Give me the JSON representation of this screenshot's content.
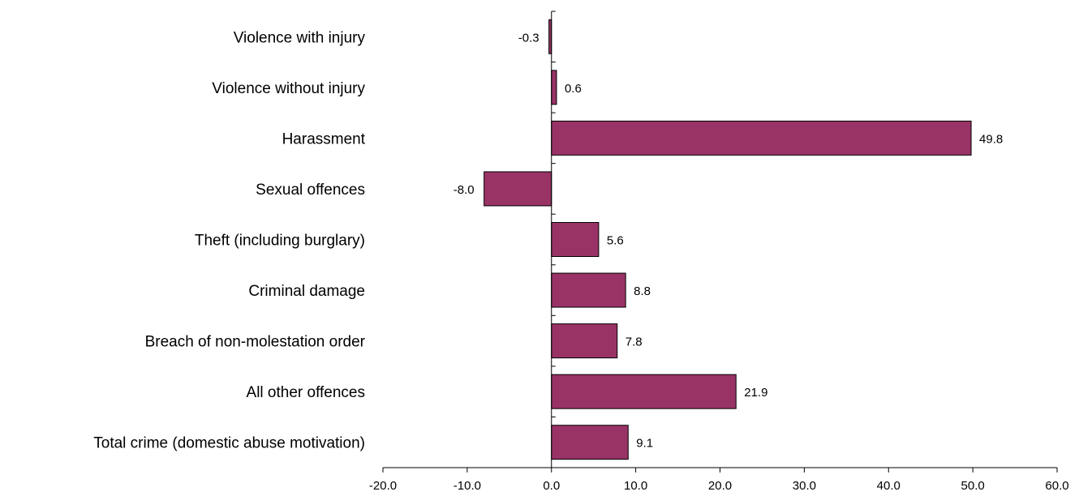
{
  "chart_data": {
    "type": "bar",
    "orientation": "horizontal",
    "categories": [
      "Violence with injury",
      "Violence without injury",
      "Harassment",
      "Sexual offences",
      "Theft (including burglary)",
      "Criminal damage",
      "Breach of non-molestation order",
      "All other offences",
      "Total crime (domestic abuse motivation)"
    ],
    "values": [
      -0.3,
      0.6,
      49.8,
      -8.0,
      5.6,
      8.8,
      7.8,
      21.9,
      9.1
    ],
    "value_labels": [
      "-0.3",
      "0.6",
      "49.8",
      "-8.0",
      "5.6",
      "8.8",
      "7.8",
      "21.9",
      "9.1"
    ],
    "xlim": [
      -20,
      60
    ],
    "xticks": [
      "-20.0",
      "-10.0",
      "0.0",
      "10.0",
      "20.0",
      "30.0",
      "40.0",
      "50.0",
      "60.0"
    ],
    "title": "",
    "xlabel": "",
    "ylabel": "",
    "grid": false,
    "bar_color": "#993366"
  }
}
